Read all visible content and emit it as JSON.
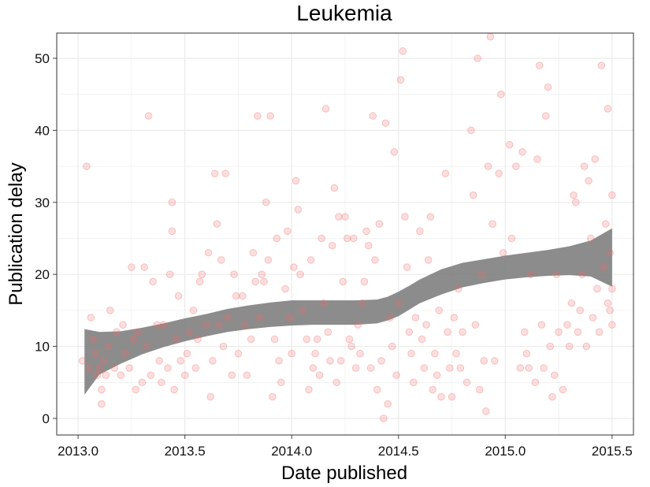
{
  "chart_data": {
    "type": "scatter",
    "title": "Leukemia",
    "xlabel": "Date published",
    "ylabel": "Publication delay",
    "xlim": [
      2012.9,
      2015.6
    ],
    "ylim": [
      -2.3,
      53.5
    ],
    "x_ticks": [
      2013.0,
      2013.5,
      2014.0,
      2014.5,
      2015.0,
      2015.5
    ],
    "x_tick_labels": [
      "2013.0",
      "2013.5",
      "2014.0",
      "2014.5",
      "2015.0",
      "2015.5"
    ],
    "y_ticks": [
      0,
      10,
      20,
      30,
      40,
      50
    ],
    "y_tick_labels": [
      "0",
      "10",
      "20",
      "30",
      "40",
      "50"
    ],
    "grid": true,
    "legend": "none",
    "colors": {
      "points": "#f26a6a",
      "smooth_band": "#808080",
      "grid": "#ebebeb",
      "panel_border": "#555555"
    },
    "series": [
      {
        "points": [
          [
            2013.02,
            8
          ],
          [
            2013.04,
            35
          ],
          [
            2013.05,
            7
          ],
          [
            2013.06,
            14
          ],
          [
            2013.07,
            11
          ],
          [
            2013.08,
            9
          ],
          [
            2013.09,
            6
          ],
          [
            2013.1,
            7
          ],
          [
            2013.11,
            2
          ],
          [
            2013.11,
            4
          ],
          [
            2013.12,
            8
          ],
          [
            2013.13,
            6
          ],
          [
            2013.14,
            10
          ],
          [
            2013.15,
            15
          ],
          [
            2013.17,
            7
          ],
          [
            2013.18,
            12
          ],
          [
            2013.2,
            6
          ],
          [
            2013.21,
            13
          ],
          [
            2013.22,
            9
          ],
          [
            2013.24,
            7
          ],
          [
            2013.25,
            21
          ],
          [
            2013.26,
            11
          ],
          [
            2013.27,
            4
          ],
          [
            2013.28,
            12
          ],
          [
            2013.3,
            5
          ],
          [
            2013.31,
            21
          ],
          [
            2013.32,
            10
          ],
          [
            2013.33,
            42
          ],
          [
            2013.34,
            6
          ],
          [
            2013.35,
            19
          ],
          [
            2013.37,
            13
          ],
          [
            2013.38,
            8
          ],
          [
            2013.39,
            5
          ],
          [
            2013.4,
            13
          ],
          [
            2013.42,
            7
          ],
          [
            2013.43,
            20
          ],
          [
            2013.44,
            30
          ],
          [
            2013.44,
            26
          ],
          [
            2013.45,
            4
          ],
          [
            2013.46,
            11
          ],
          [
            2013.47,
            17
          ],
          [
            2013.48,
            8
          ],
          [
            2013.5,
            6
          ],
          [
            2013.51,
            9
          ],
          [
            2013.52,
            12
          ],
          [
            2013.54,
            15
          ],
          [
            2013.55,
            7
          ],
          [
            2013.56,
            11
          ],
          [
            2013.57,
            19
          ],
          [
            2013.58,
            20
          ],
          [
            2013.6,
            13
          ],
          [
            2013.61,
            23
          ],
          [
            2013.62,
            3
          ],
          [
            2013.63,
            8
          ],
          [
            2013.64,
            34
          ],
          [
            2013.65,
            27
          ],
          [
            2013.66,
            13
          ],
          [
            2013.67,
            22
          ],
          [
            2013.68,
            10
          ],
          [
            2013.69,
            34
          ],
          [
            2013.7,
            14
          ],
          [
            2013.72,
            6
          ],
          [
            2013.73,
            20
          ],
          [
            2013.74,
            17
          ],
          [
            2013.75,
            9
          ],
          [
            2013.77,
            17
          ],
          [
            2013.78,
            13
          ],
          [
            2013.79,
            6
          ],
          [
            2013.81,
            11
          ],
          [
            2013.82,
            23
          ],
          [
            2013.83,
            19
          ],
          [
            2013.84,
            42
          ],
          [
            2013.85,
            14
          ],
          [
            2013.86,
            20
          ],
          [
            2013.87,
            19
          ],
          [
            2013.88,
            30
          ],
          [
            2013.89,
            22
          ],
          [
            2013.9,
            42
          ],
          [
            2013.91,
            3
          ],
          [
            2013.92,
            11
          ],
          [
            2013.93,
            25
          ],
          [
            2013.94,
            8
          ],
          [
            2013.95,
            5
          ],
          [
            2013.97,
            18
          ],
          [
            2013.98,
            26
          ],
          [
            2013.99,
            14
          ],
          [
            2014.0,
            9
          ],
          [
            2014.01,
            21
          ],
          [
            2014.02,
            33
          ],
          [
            2014.03,
            29
          ],
          [
            2014.04,
            20
          ],
          [
            2014.05,
            15
          ],
          [
            2014.07,
            11
          ],
          [
            2014.08,
            4
          ],
          [
            2014.09,
            22
          ],
          [
            2014.1,
            7
          ],
          [
            2014.11,
            9
          ],
          [
            2014.12,
            11
          ],
          [
            2014.13,
            6
          ],
          [
            2014.14,
            25
          ],
          [
            2014.15,
            16
          ],
          [
            2014.16,
            43
          ],
          [
            2014.17,
            12
          ],
          [
            2014.18,
            8
          ],
          [
            2014.19,
            24
          ],
          [
            2014.2,
            32
          ],
          [
            2014.21,
            5
          ],
          [
            2014.22,
            28
          ],
          [
            2014.23,
            8
          ],
          [
            2014.24,
            19
          ],
          [
            2014.25,
            28
          ],
          [
            2014.26,
            25
          ],
          [
            2014.27,
            11
          ],
          [
            2014.28,
            10
          ],
          [
            2014.29,
            25
          ],
          [
            2014.3,
            7
          ],
          [
            2014.31,
            13
          ],
          [
            2014.32,
            9
          ],
          [
            2014.33,
            16
          ],
          [
            2014.34,
            19
          ],
          [
            2014.35,
            26
          ],
          [
            2014.36,
            24
          ],
          [
            2014.37,
            7
          ],
          [
            2014.38,
            42
          ],
          [
            2014.39,
            22
          ],
          [
            2014.4,
            4
          ],
          [
            2014.41,
            27
          ],
          [
            2014.42,
            8
          ],
          [
            2014.43,
            0
          ],
          [
            2014.44,
            41
          ],
          [
            2014.45,
            2
          ],
          [
            2014.46,
            14
          ],
          [
            2014.47,
            10
          ],
          [
            2014.48,
            37
          ],
          [
            2014.49,
            6
          ],
          [
            2014.5,
            16
          ],
          [
            2014.51,
            47
          ],
          [
            2014.52,
            51
          ],
          [
            2014.53,
            28
          ],
          [
            2014.54,
            21
          ],
          [
            2014.55,
            12
          ],
          [
            2014.56,
            9
          ],
          [
            2014.57,
            5
          ],
          [
            2014.58,
            14
          ],
          [
            2014.6,
            26
          ],
          [
            2014.61,
            11
          ],
          [
            2014.62,
            7
          ],
          [
            2014.63,
            13
          ],
          [
            2014.64,
            22
          ],
          [
            2014.65,
            28
          ],
          [
            2014.66,
            4
          ],
          [
            2014.67,
            9
          ],
          [
            2014.68,
            6
          ],
          [
            2014.69,
            15
          ],
          [
            2014.7,
            3
          ],
          [
            2014.72,
            34
          ],
          [
            2014.73,
            12
          ],
          [
            2014.74,
            7
          ],
          [
            2014.75,
            3
          ],
          [
            2014.76,
            14
          ],
          [
            2014.77,
            9
          ],
          [
            2014.78,
            18
          ],
          [
            2014.79,
            7
          ],
          [
            2014.8,
            12
          ],
          [
            2014.82,
            5
          ],
          [
            2014.84,
            40
          ],
          [
            2014.85,
            31
          ],
          [
            2014.86,
            13
          ],
          [
            2014.87,
            50
          ],
          [
            2014.88,
            4
          ],
          [
            2014.89,
            20
          ],
          [
            2014.9,
            8
          ],
          [
            2014.91,
            1
          ],
          [
            2014.92,
            35
          ],
          [
            2014.93,
            53
          ],
          [
            2014.94,
            27
          ],
          [
            2014.95,
            8
          ],
          [
            2014.97,
            34
          ],
          [
            2014.98,
            45
          ],
          [
            2014.99,
            23
          ],
          [
            2015.02,
            38
          ],
          [
            2015.03,
            25
          ],
          [
            2015.05,
            35
          ],
          [
            2015.07,
            7
          ],
          [
            2015.08,
            37
          ],
          [
            2015.09,
            12
          ],
          [
            2015.1,
            9
          ],
          [
            2015.11,
            7
          ],
          [
            2015.12,
            20
          ],
          [
            2015.14,
            5
          ],
          [
            2015.15,
            36
          ],
          [
            2015.16,
            49
          ],
          [
            2015.17,
            13
          ],
          [
            2015.18,
            7
          ],
          [
            2015.19,
            42
          ],
          [
            2015.2,
            46
          ],
          [
            2015.21,
            10
          ],
          [
            2015.22,
            3
          ],
          [
            2015.23,
            6
          ],
          [
            2015.24,
            20
          ],
          [
            2015.25,
            12
          ],
          [
            2015.27,
            4
          ],
          [
            2015.29,
            13
          ],
          [
            2015.3,
            10
          ],
          [
            2015.31,
            16
          ],
          [
            2015.32,
            31
          ],
          [
            2015.33,
            30
          ],
          [
            2015.34,
            12
          ],
          [
            2015.35,
            15
          ],
          [
            2015.36,
            20
          ],
          [
            2015.37,
            35
          ],
          [
            2015.38,
            10
          ],
          [
            2015.39,
            33
          ],
          [
            2015.4,
            25
          ],
          [
            2015.41,
            14
          ],
          [
            2015.42,
            36
          ],
          [
            2015.43,
            18
          ],
          [
            2015.44,
            12
          ],
          [
            2015.45,
            49
          ],
          [
            2015.46,
            21
          ],
          [
            2015.47,
            27
          ],
          [
            2015.48,
            16
          ],
          [
            2015.48,
            43
          ],
          [
            2015.49,
            15
          ],
          [
            2015.49,
            23
          ],
          [
            2015.5,
            31
          ],
          [
            2015.5,
            18
          ],
          [
            2015.5,
            13
          ]
        ]
      }
    ],
    "smooth_band": {
      "x": [
        2013.03,
        2013.1,
        2013.2,
        2013.3,
        2013.4,
        2013.5,
        2013.6,
        2013.7,
        2013.8,
        2013.9,
        2014.0,
        2014.1,
        2014.2,
        2014.3,
        2014.4,
        2014.45,
        2014.5,
        2014.55,
        2014.6,
        2014.7,
        2014.8,
        2014.9,
        2015.0,
        2015.1,
        2015.2,
        2015.3,
        2015.4,
        2015.5
      ],
      "upper": [
        12.4,
        12.0,
        12.1,
        12.6,
        13.2,
        13.9,
        14.5,
        15.2,
        15.7,
        16.1,
        16.4,
        16.4,
        16.4,
        16.4,
        16.5,
        16.9,
        17.6,
        18.4,
        19.3,
        20.7,
        21.6,
        22.1,
        22.6,
        23.0,
        23.4,
        23.9,
        24.7,
        26.4
      ],
      "lower": [
        3.3,
        6.1,
        7.6,
        8.9,
        9.9,
        10.7,
        11.4,
        12.0,
        12.4,
        12.7,
        12.9,
        13.0,
        13.0,
        13.0,
        13.2,
        13.6,
        14.2,
        15.1,
        16.0,
        17.2,
        18.2,
        18.8,
        19.3,
        19.6,
        19.8,
        19.9,
        19.7,
        18.3
      ]
    }
  }
}
